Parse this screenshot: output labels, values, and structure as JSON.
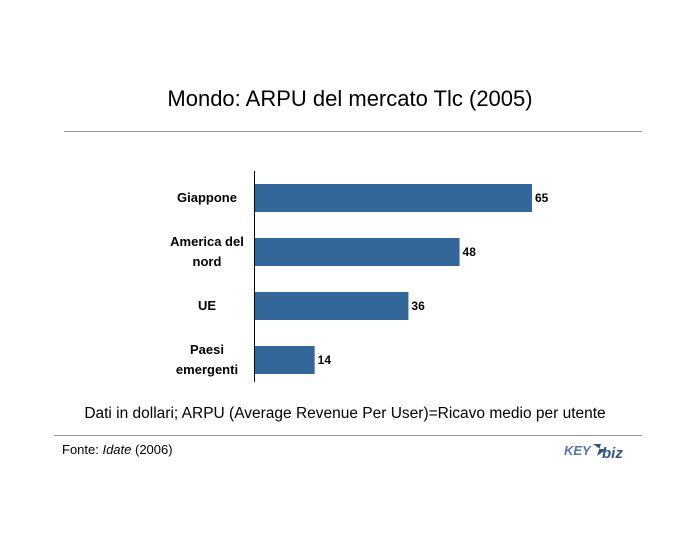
{
  "header": {
    "title": "Mondo: ARPU del mercato Tlc (2005)"
  },
  "chart_data": {
    "type": "bar",
    "orientation": "horizontal",
    "categories": [
      [
        "Giappone"
      ],
      [
        "America del",
        "nord"
      ],
      [
        "UE"
      ],
      [
        "Paesi",
        "emergenti"
      ]
    ],
    "values": [
      65,
      48,
      36,
      14
    ],
    "xlim": [
      0,
      65
    ],
    "grid": false,
    "legend": "none",
    "bar_color": "#336699"
  },
  "footer": {
    "note": "Dati in dollari; ARPU (Average Revenue Per User)=Ricavo medio per utente",
    "source_prefix": "Fonte: ",
    "source_name": "Idate",
    "source_suffix": " (2006)",
    "logo_text": "KEY4biz"
  }
}
